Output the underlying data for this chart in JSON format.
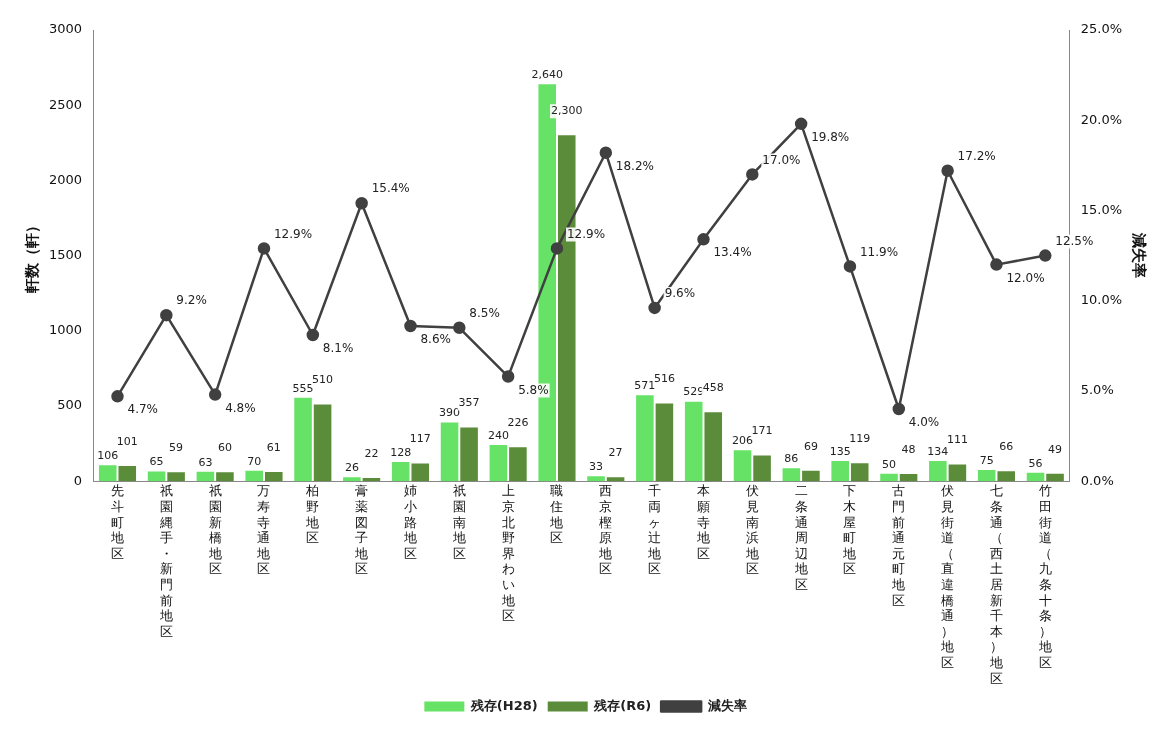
{
  "chart_data": {
    "type": "bar",
    "ylabel": "軒数（軒）",
    "y2label": "減失率",
    "categories": [
      "先斗町地区",
      "祇園縄手・新門前地区",
      "祇園新橋地区",
      "万寿寺通地区",
      "柏野地区",
      "膏薬図子地区",
      "姉小路地区",
      "祇園南地区",
      "上京北野界わい地区",
      "職住地区",
      "西京樫原地区",
      "千両ヶ辻地区",
      "本願寺地区",
      "伏見南浜地区",
      "二条通周辺地区",
      "下木屋町地区",
      "古門前通元町地区",
      "伏見街道（直違橋通）地区",
      "七条通（西土居新千本）地区",
      "竹田街道（九条十条）地区"
    ],
    "series": [
      {
        "name": "残存(H28)",
        "color": "#66e266",
        "values": [
          106,
          65,
          63,
          70,
          555,
          26,
          128,
          390,
          240,
          2640,
          33,
          571,
          529,
          206,
          86,
          135,
          50,
          134,
          75,
          56
        ],
        "value_labels": [
          "106",
          "65",
          "63",
          "70",
          "555",
          "26",
          "128",
          "390",
          "240",
          "2,640",
          "33",
          "571",
          "529",
          "206",
          "86",
          "135",
          "50",
          "134",
          "75",
          "56"
        ]
      },
      {
        "name": "残存(R6)",
        "color": "#5b8c3a",
        "values": [
          101,
          59,
          60,
          61,
          510,
          22,
          117,
          357,
          226,
          2300,
          27,
          516,
          458,
          171,
          69,
          119,
          48,
          111,
          66,
          49
        ],
        "value_labels": [
          "101",
          "59",
          "60",
          "61",
          "510",
          "22",
          "117",
          "357",
          "226",
          "2,300",
          "27",
          "516",
          "458",
          "171",
          "69",
          "119",
          "48",
          "111",
          "66",
          "49"
        ]
      },
      {
        "name": "減失率",
        "type": "line",
        "axis": "y2",
        "color": "#404040",
        "marker": "circle",
        "values": [
          4.7,
          9.2,
          4.8,
          12.9,
          8.1,
          15.4,
          8.6,
          8.5,
          5.8,
          12.9,
          18.2,
          9.6,
          13.4,
          17.0,
          19.8,
          11.9,
          4.0,
          17.2,
          12.0,
          12.5
        ],
        "value_labels": [
          "4.7%",
          "9.2%",
          "4.8%",
          "12.9%",
          "8.1%",
          "15.4%",
          "8.6%",
          "8.5%",
          "5.8%",
          "12.9%",
          "18.2%",
          "9.6%",
          "13.4%",
          "17.0%",
          "19.8%",
          "11.9%",
          "4.0%",
          "17.2%",
          "12.0%",
          "12.5%"
        ]
      }
    ],
    "ylim": [
      0,
      3000
    ],
    "yticks": [
      0,
      500,
      1000,
      1500,
      2000,
      2500,
      3000
    ],
    "y2lim": [
      0,
      25
    ],
    "y2ticks": [
      {
        "value": 0,
        "label": "0.0%"
      },
      {
        "value": 5,
        "label": "5.0%"
      },
      {
        "value": 10,
        "label": "10.0%"
      },
      {
        "value": 15,
        "label": "15.0%"
      },
      {
        "value": 20,
        "label": "20.0%"
      },
      {
        "value": 25,
        "label": "25.0%"
      }
    ],
    "grid": false,
    "legend": "bottom"
  }
}
